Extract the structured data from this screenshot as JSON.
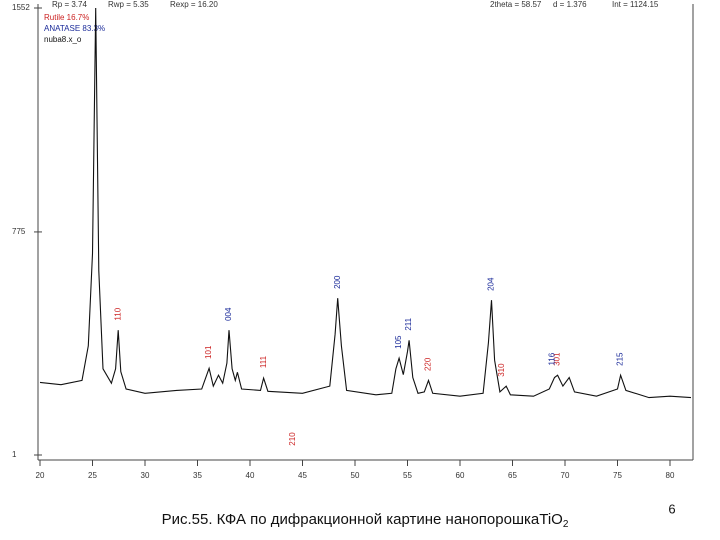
{
  "chart_data": {
    "type": "line",
    "stats": [
      "Rp = 3.74",
      "Rwp = 5.35",
      "Rexp = 16.20",
      "2theta = 58.57",
      "d = 1.376",
      "Int = 1124.15"
    ],
    "series": [
      {
        "name": "Rutile 16.7%",
        "color": "#cc2222",
        "values": null
      },
      {
        "name": "ANATASE 83.3%",
        "color": "#1a2a99",
        "values": null
      },
      {
        "name": "nuba8.x_o",
        "color": "#111111",
        "x": [
          20,
          22,
          24,
          24.6,
          25.0,
          25.3,
          25.6,
          26.0,
          26.8,
          27.2,
          27.45,
          27.7,
          28.2,
          30,
          33,
          35.4,
          36.1,
          36.5,
          37.0,
          37.4,
          37.8,
          38.0,
          38.3,
          38.6,
          38.8,
          39.2,
          41.0,
          41.3,
          41.7,
          45,
          47.6,
          48.1,
          48.35,
          48.7,
          49.2,
          52,
          53.5,
          53.9,
          54.2,
          54.6,
          55.0,
          55.15,
          55.5,
          56.0,
          56.6,
          57.0,
          57.4,
          60,
          62.2,
          62.7,
          63.0,
          63.3,
          63.8,
          64.4,
          64.8,
          67,
          68.5,
          69.0,
          69.3,
          69.8,
          70.4,
          70.9,
          73,
          75.0,
          75.3,
          75.8,
          78,
          80,
          82
        ],
        "values": [
          253,
          245,
          260,
          380,
          700,
          1552,
          640,
          300,
          250,
          300,
          434,
          290,
          230,
          215,
          225,
          230,
          302,
          240,
          278,
          250,
          320,
          434,
          300,
          260,
          288,
          230,
          225,
          268,
          222,
          215,
          240,
          420,
          545,
          380,
          225,
          210,
          215,
          300,
          337,
          280,
          360,
          399,
          270,
          215,
          220,
          260,
          215,
          205,
          215,
          390,
          538,
          330,
          220,
          240,
          210,
          205,
          230,
          270,
          278,
          240,
          270,
          220,
          205,
          230,
          278,
          225,
          200,
          205,
          200
        ]
      }
    ],
    "annotations": [
      {
        "text": "110",
        "x": 27.45,
        "phase": 0
      },
      {
        "text": "101",
        "x": 36.1,
        "phase": 0
      },
      {
        "text": "111",
        "x": 41.3,
        "phase": 0
      },
      {
        "text": "210",
        "x": 44.1,
        "phase": 0
      },
      {
        "text": "220",
        "x": 57.0,
        "phase": 0
      },
      {
        "text": "310",
        "x": 64.0,
        "phase": 0
      },
      {
        "text": "301",
        "x": 69.3,
        "phase": 0
      },
      {
        "text": "004",
        "x": 38.0,
        "phase": 1
      },
      {
        "text": "200",
        "x": 48.35,
        "phase": 1
      },
      {
        "text": "105",
        "x": 54.2,
        "phase": 1
      },
      {
        "text": "211",
        "x": 55.15,
        "phase": 1
      },
      {
        "text": "204",
        "x": 63.0,
        "phase": 1
      },
      {
        "text": "116",
        "x": 68.8,
        "phase": 1
      },
      {
        "text": "215",
        "x": 75.3,
        "phase": 1
      }
    ],
    "xlim": [
      20,
      82
    ],
    "xticks": [
      20,
      25,
      30,
      35,
      40,
      45,
      50,
      55,
      60,
      65,
      70,
      75,
      80
    ],
    "ylim": [
      1,
      1552
    ],
    "yticks": [
      1,
      775,
      1552
    ],
    "caption": "Рис.55.  КФА по дифракционной картине нанопорошкаTiO",
    "caption_sub": "2",
    "page_number": "6"
  }
}
